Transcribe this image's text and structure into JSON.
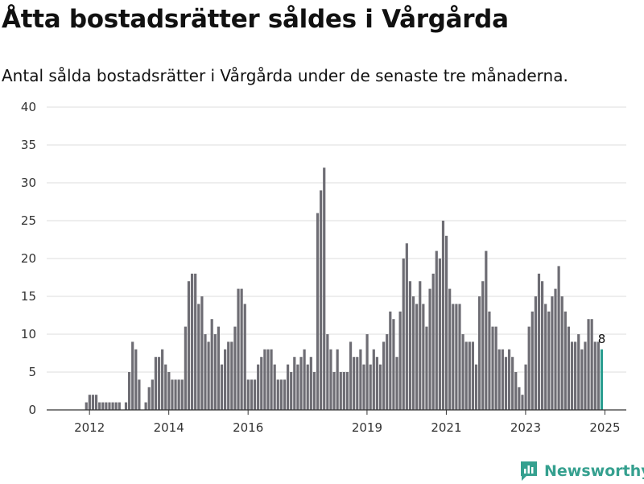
{
  "title": "Åtta bostadsrätter såldes i Vårgårda",
  "subtitle": "Antal sålda bostadsrätter i Vårgårda under de senaste tre månaderna.",
  "brand": {
    "name": "Newsworthy",
    "color": "#35a08f",
    "icon": "bar-chart-icon"
  },
  "chart_data": {
    "type": "bar",
    "ylim": [
      0,
      40
    ],
    "yticks": [
      0,
      5,
      10,
      15,
      20,
      25,
      30,
      35,
      40
    ],
    "xticks": [
      {
        "label": "2012",
        "at": 2012.08
      },
      {
        "label": "2014",
        "at": 2014.08
      },
      {
        "label": "2016",
        "at": 2016.08
      },
      {
        "label": "2019",
        "at": 2019.08
      },
      {
        "label": "2021",
        "at": 2021.08
      },
      {
        "label": "2023",
        "at": 2023.08
      },
      {
        "label": "2025",
        "at": 2025.08
      }
    ],
    "grid": true,
    "bar_color": "#6e6d74",
    "highlight_color": "#2a9d8f",
    "highlight_label": "8",
    "series": [
      {
        "start": "2011-09",
        "values": [
          0,
          0,
          0,
          0,
          1,
          2,
          2,
          2,
          1,
          1,
          1,
          1,
          1,
          1,
          1,
          0,
          1,
          5,
          9,
          8,
          4,
          0,
          1,
          3,
          4,
          7,
          7,
          8,
          6,
          5,
          4,
          4,
          4,
          4,
          11,
          17,
          18,
          18,
          14,
          15,
          10,
          9,
          12,
          10,
          11,
          6,
          8,
          9,
          9,
          11,
          16,
          16,
          14,
          4,
          4,
          4,
          6,
          7,
          8,
          8,
          8,
          6,
          4,
          4,
          4,
          6,
          5,
          7,
          6,
          7,
          8,
          6,
          7,
          5,
          26,
          29,
          32,
          10,
          8,
          5,
          8,
          5,
          5,
          5,
          9,
          7,
          7,
          8,
          6,
          10,
          6,
          8,
          7,
          6,
          9,
          10,
          13,
          12,
          7,
          13,
          20,
          22,
          17,
          15,
          14,
          17,
          14,
          11,
          16,
          18,
          21,
          20,
          25,
          23,
          16,
          14,
          14,
          14,
          10,
          9,
          9,
          9,
          6,
          15,
          17,
          21,
          13,
          11,
          11,
          8,
          8,
          7,
          8,
          7,
          5,
          3,
          2,
          6,
          11,
          13,
          15,
          18,
          17,
          14,
          13,
          15,
          16,
          19,
          15,
          13,
          11,
          9,
          9,
          10,
          8,
          9,
          12,
          12,
          9,
          9,
          8
        ]
      }
    ]
  }
}
